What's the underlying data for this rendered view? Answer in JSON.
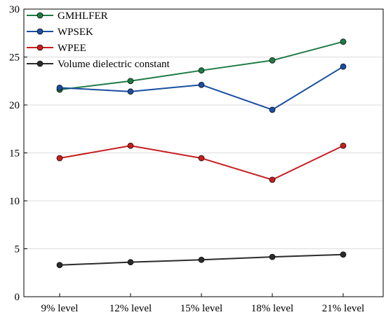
{
  "chart_data": {
    "type": "line",
    "categories": [
      "9% level",
      "12% level",
      "15% level",
      "18% level",
      "21% level"
    ],
    "ylim": [
      0,
      30
    ],
    "yticks": [
      0,
      5,
      10,
      15,
      20,
      25,
      30
    ],
    "grid": "horizontal",
    "legend_position": "top-left",
    "series": [
      {
        "name": "GMHLFER",
        "color": "#1e7b45",
        "values": [
          21.6,
          22.5,
          23.6,
          24.65,
          26.6
        ]
      },
      {
        "name": "WPSEK",
        "color": "#1a4fa0",
        "values": [
          21.8,
          21.4,
          22.1,
          19.5,
          24.0
        ]
      },
      {
        "name": "WPEE",
        "color": "#c81e1e",
        "values": [
          14.45,
          15.75,
          14.45,
          12.2,
          15.75
        ]
      },
      {
        "name": "Volume dielectric constant",
        "color": "#2b2b2b",
        "values": [
          3.3,
          3.6,
          3.85,
          4.15,
          4.4
        ]
      }
    ]
  }
}
